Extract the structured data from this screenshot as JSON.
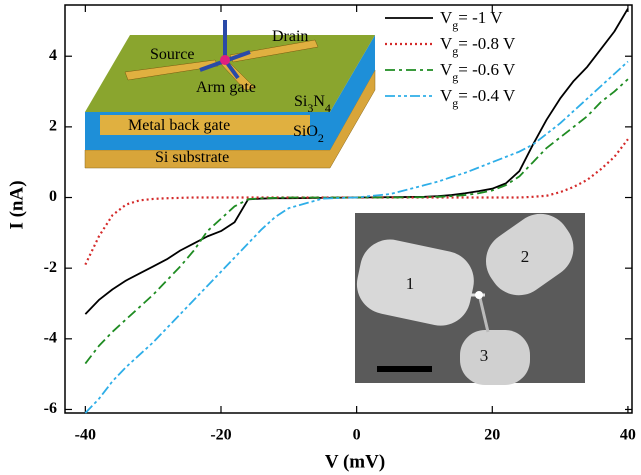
{
  "chart_data": {
    "type": "line",
    "x_label": "V (mV)",
    "y_label": "I (nA)",
    "xlim": [
      -43,
      40.6
    ],
    "ylim": [
      -6.1,
      5.45
    ],
    "xticks": [
      -40,
      -20,
      0,
      20,
      40
    ],
    "yticks": [
      -6,
      -4,
      -2,
      0,
      2,
      4
    ],
    "legend": "upper right",
    "x": [
      -40,
      -38,
      -36,
      -34,
      -32,
      -30,
      -28,
      -26,
      -24,
      -22,
      -20,
      -18,
      -16,
      -14,
      -12,
      -10,
      -5,
      0,
      5,
      10,
      12,
      14,
      16,
      18,
      20,
      22,
      24,
      26,
      28,
      30,
      32,
      34,
      36,
      38,
      40
    ],
    "series": [
      {
        "name": "Vg= -1 V",
        "color": "#000000",
        "style": "solid",
        "values": [
          -3.3,
          -2.9,
          -2.6,
          -2.35,
          -2.15,
          -1.95,
          -1.75,
          -1.5,
          -1.3,
          -1.1,
          -0.95,
          -0.7,
          -0.05,
          -0.03,
          -0.02,
          -0.02,
          -0.01,
          0,
          0.01,
          0.02,
          0.04,
          0.07,
          0.12,
          0.18,
          0.25,
          0.4,
          0.75,
          1.5,
          2.2,
          2.8,
          3.3,
          3.7,
          4.2,
          4.7,
          5.35
        ]
      },
      {
        "name": "Vg= -0.8 V",
        "color": "#d42a2a",
        "style": "dotted",
        "values": [
          -1.9,
          -1.1,
          -0.5,
          -0.2,
          -0.08,
          -0.04,
          -0.02,
          -0.01,
          0,
          0,
          0,
          0,
          0,
          0,
          0,
          0,
          0,
          0,
          0,
          0,
          0,
          0,
          0,
          0,
          0,
          0,
          0,
          0.02,
          0.05,
          0.15,
          0.3,
          0.5,
          0.8,
          1.15,
          1.65
        ]
      },
      {
        "name": "Vg= -0.6 V",
        "color": "#1f8c22",
        "style": "dashdot",
        "values": [
          -4.7,
          -4.2,
          -3.8,
          -3.45,
          -3.1,
          -2.75,
          -2.35,
          -1.95,
          -1.5,
          -0.95,
          -0.6,
          -0.25,
          -0.05,
          -0.02,
          -0.01,
          0,
          0,
          0,
          0,
          0.01,
          0.02,
          0.04,
          0.07,
          0.12,
          0.2,
          0.35,
          0.6,
          1.0,
          1.4,
          1.7,
          2.0,
          2.3,
          2.7,
          3.0,
          3.35
        ]
      },
      {
        "name": "Vg= -0.4 V",
        "color": "#2eaee8",
        "style": "dashdotdot",
        "values": [
          -6.1,
          -5.7,
          -5.2,
          -4.8,
          -4.45,
          -4.1,
          -3.7,
          -3.3,
          -2.9,
          -2.5,
          -2.1,
          -1.7,
          -1.3,
          -0.9,
          -0.55,
          -0.3,
          -0.03,
          0,
          0.1,
          0.35,
          0.45,
          0.58,
          0.7,
          0.85,
          1.0,
          1.15,
          1.3,
          1.5,
          1.8,
          2.1,
          2.45,
          2.8,
          3.15,
          3.5,
          3.85
        ]
      }
    ],
    "schematic_labels": [
      "Source",
      "Drain",
      "Arm gate",
      "Si3N4",
      "Metal back gate",
      "SiO2",
      "Si substrate"
    ],
    "micrograph_labels": [
      "1",
      "2",
      "3"
    ]
  }
}
